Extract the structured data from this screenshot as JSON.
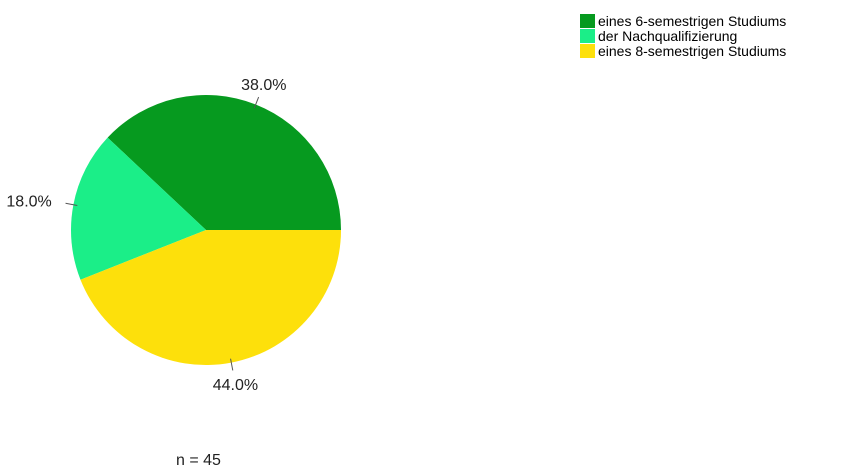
{
  "chart_data": {
    "type": "pie",
    "slices": [
      {
        "label": "eines 6-semestrigen Studiums",
        "value": 38.0,
        "value_label": "38.0%",
        "color": "#069a1f"
      },
      {
        "label": "der Nachqualifizierung",
        "value": 18.0,
        "value_label": "18.0%",
        "color": "#1bee88"
      },
      {
        "label": "eines 8-semestrigen Studiums",
        "value": 44.0,
        "value_label": "44.0%",
        "color": "#fde00b"
      }
    ],
    "start_angle_deg": 0,
    "direction": "counterclockwise",
    "legend_position": "top-right",
    "footnote": "n = 45"
  }
}
